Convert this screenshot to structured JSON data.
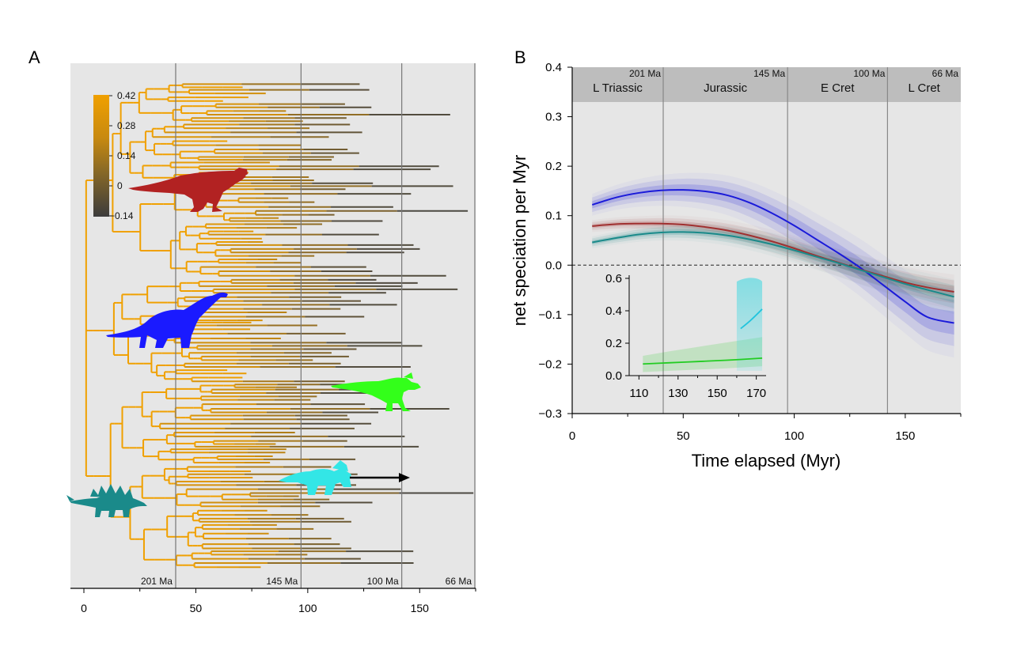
{
  "figure": {
    "panel_a_label": "A",
    "panel_b_label": "B"
  },
  "chart_data": [
    {
      "id": "A",
      "type": "phylogenetic-tree",
      "xlim": [
        0,
        175
      ],
      "x_ticks": [
        0,
        50,
        100,
        150
      ],
      "boundaries": [
        {
          "x": 41,
          "label": "201 Ma"
        },
        {
          "x": 97,
          "label": "145 Ma"
        },
        {
          "x": 142,
          "label": "100 Ma"
        },
        {
          "x": 176,
          "label": "66 Ma"
        }
      ],
      "color_scale": {
        "min": -0.14,
        "max": 0.42,
        "tick_labels": [
          "0.42",
          "0.28",
          "0.14",
          "0",
          "−0.14"
        ],
        "high_color": "#f0a000",
        "low_color": "#444444"
      },
      "silhouettes": [
        {
          "name": "theropod-icon",
          "color": "#b22222"
        },
        {
          "name": "sauropod-icon",
          "color": "#1a1aff"
        },
        {
          "name": "hadrosaur-icon",
          "color": "#33ff1a"
        },
        {
          "name": "ceratopsian-icon",
          "color": "#33e6e6"
        },
        {
          "name": "stegosaur-icon",
          "color": "#1a8a8a"
        }
      ]
    },
    {
      "id": "B",
      "type": "line",
      "xlabel": "Time elapsed (Myr)",
      "ylabel": "net speciation per Myr",
      "xlim": [
        0,
        175
      ],
      "ylim": [
        -0.3,
        0.4
      ],
      "x_ticks": [
        0,
        50,
        100,
        150
      ],
      "y_ticks": [
        "0.4",
        "0.3",
        "0.2",
        "0.1",
        "0.0",
        "−0.1",
        "−0.2",
        "−0.3"
      ],
      "periods": [
        {
          "name": "L Triassic",
          "end_label": "201 Ma",
          "end": 41
        },
        {
          "name": "Jurassic",
          "end_label": "145 Ma",
          "end": 97
        },
        {
          "name": "E Cret",
          "end_label": "100 Ma",
          "end": 142
        },
        {
          "name": "L Cret",
          "end_label": "66 Ma",
          "end": 175
        }
      ],
      "reference_line_y": 0.0,
      "series": [
        {
          "color": "#1a1ad9",
          "x": [
            9,
            20,
            30,
            40,
            50,
            60,
            70,
            80,
            90,
            100,
            110,
            120,
            130,
            140,
            150,
            160,
            172
          ],
          "values": [
            0.122,
            0.137,
            0.146,
            0.151,
            0.152,
            0.149,
            0.141,
            0.126,
            0.105,
            0.08,
            0.052,
            0.024,
            -0.006,
            -0.04,
            -0.074,
            -0.105,
            -0.117
          ]
        },
        {
          "color": "#a03030",
          "x": [
            9,
            20,
            30,
            40,
            50,
            60,
            70,
            80,
            90,
            100,
            110,
            120,
            130,
            140,
            150,
            160,
            172
          ],
          "values": [
            0.079,
            0.083,
            0.084,
            0.084,
            0.082,
            0.077,
            0.07,
            0.06,
            0.048,
            0.034,
            0.019,
            0.005,
            -0.009,
            -0.022,
            -0.035,
            -0.045,
            -0.054
          ]
        },
        {
          "color": "#1a8a8a",
          "x": [
            9,
            20,
            30,
            40,
            50,
            60,
            70,
            80,
            90,
            100,
            110,
            120,
            130,
            140,
            150,
            160,
            172
          ],
          "values": [
            0.046,
            0.055,
            0.062,
            0.066,
            0.067,
            0.065,
            0.06,
            0.052,
            0.042,
            0.03,
            0.017,
            0.004,
            -0.01,
            -0.024,
            -0.038,
            -0.05,
            -0.064
          ]
        }
      ],
      "inset": {
        "xlim": [
          105,
          175
        ],
        "ylim": [
          0.0,
          0.6
        ],
        "x_ticks": [
          110,
          130,
          150,
          170
        ],
        "y_ticks": [
          "0.6",
          "0.4",
          "0.2",
          "0.0"
        ],
        "series": [
          {
            "color": "#22cc22",
            "x": [
              112,
              125,
              140,
              155,
              173
            ],
            "values": [
              0.072,
              0.079,
              0.087,
              0.095,
              0.108
            ]
          },
          {
            "color": "#22c4dd",
            "x": [
              162,
              167,
              173
            ],
            "values": [
              0.29,
              0.34,
              0.41
            ]
          }
        ]
      }
    }
  ]
}
